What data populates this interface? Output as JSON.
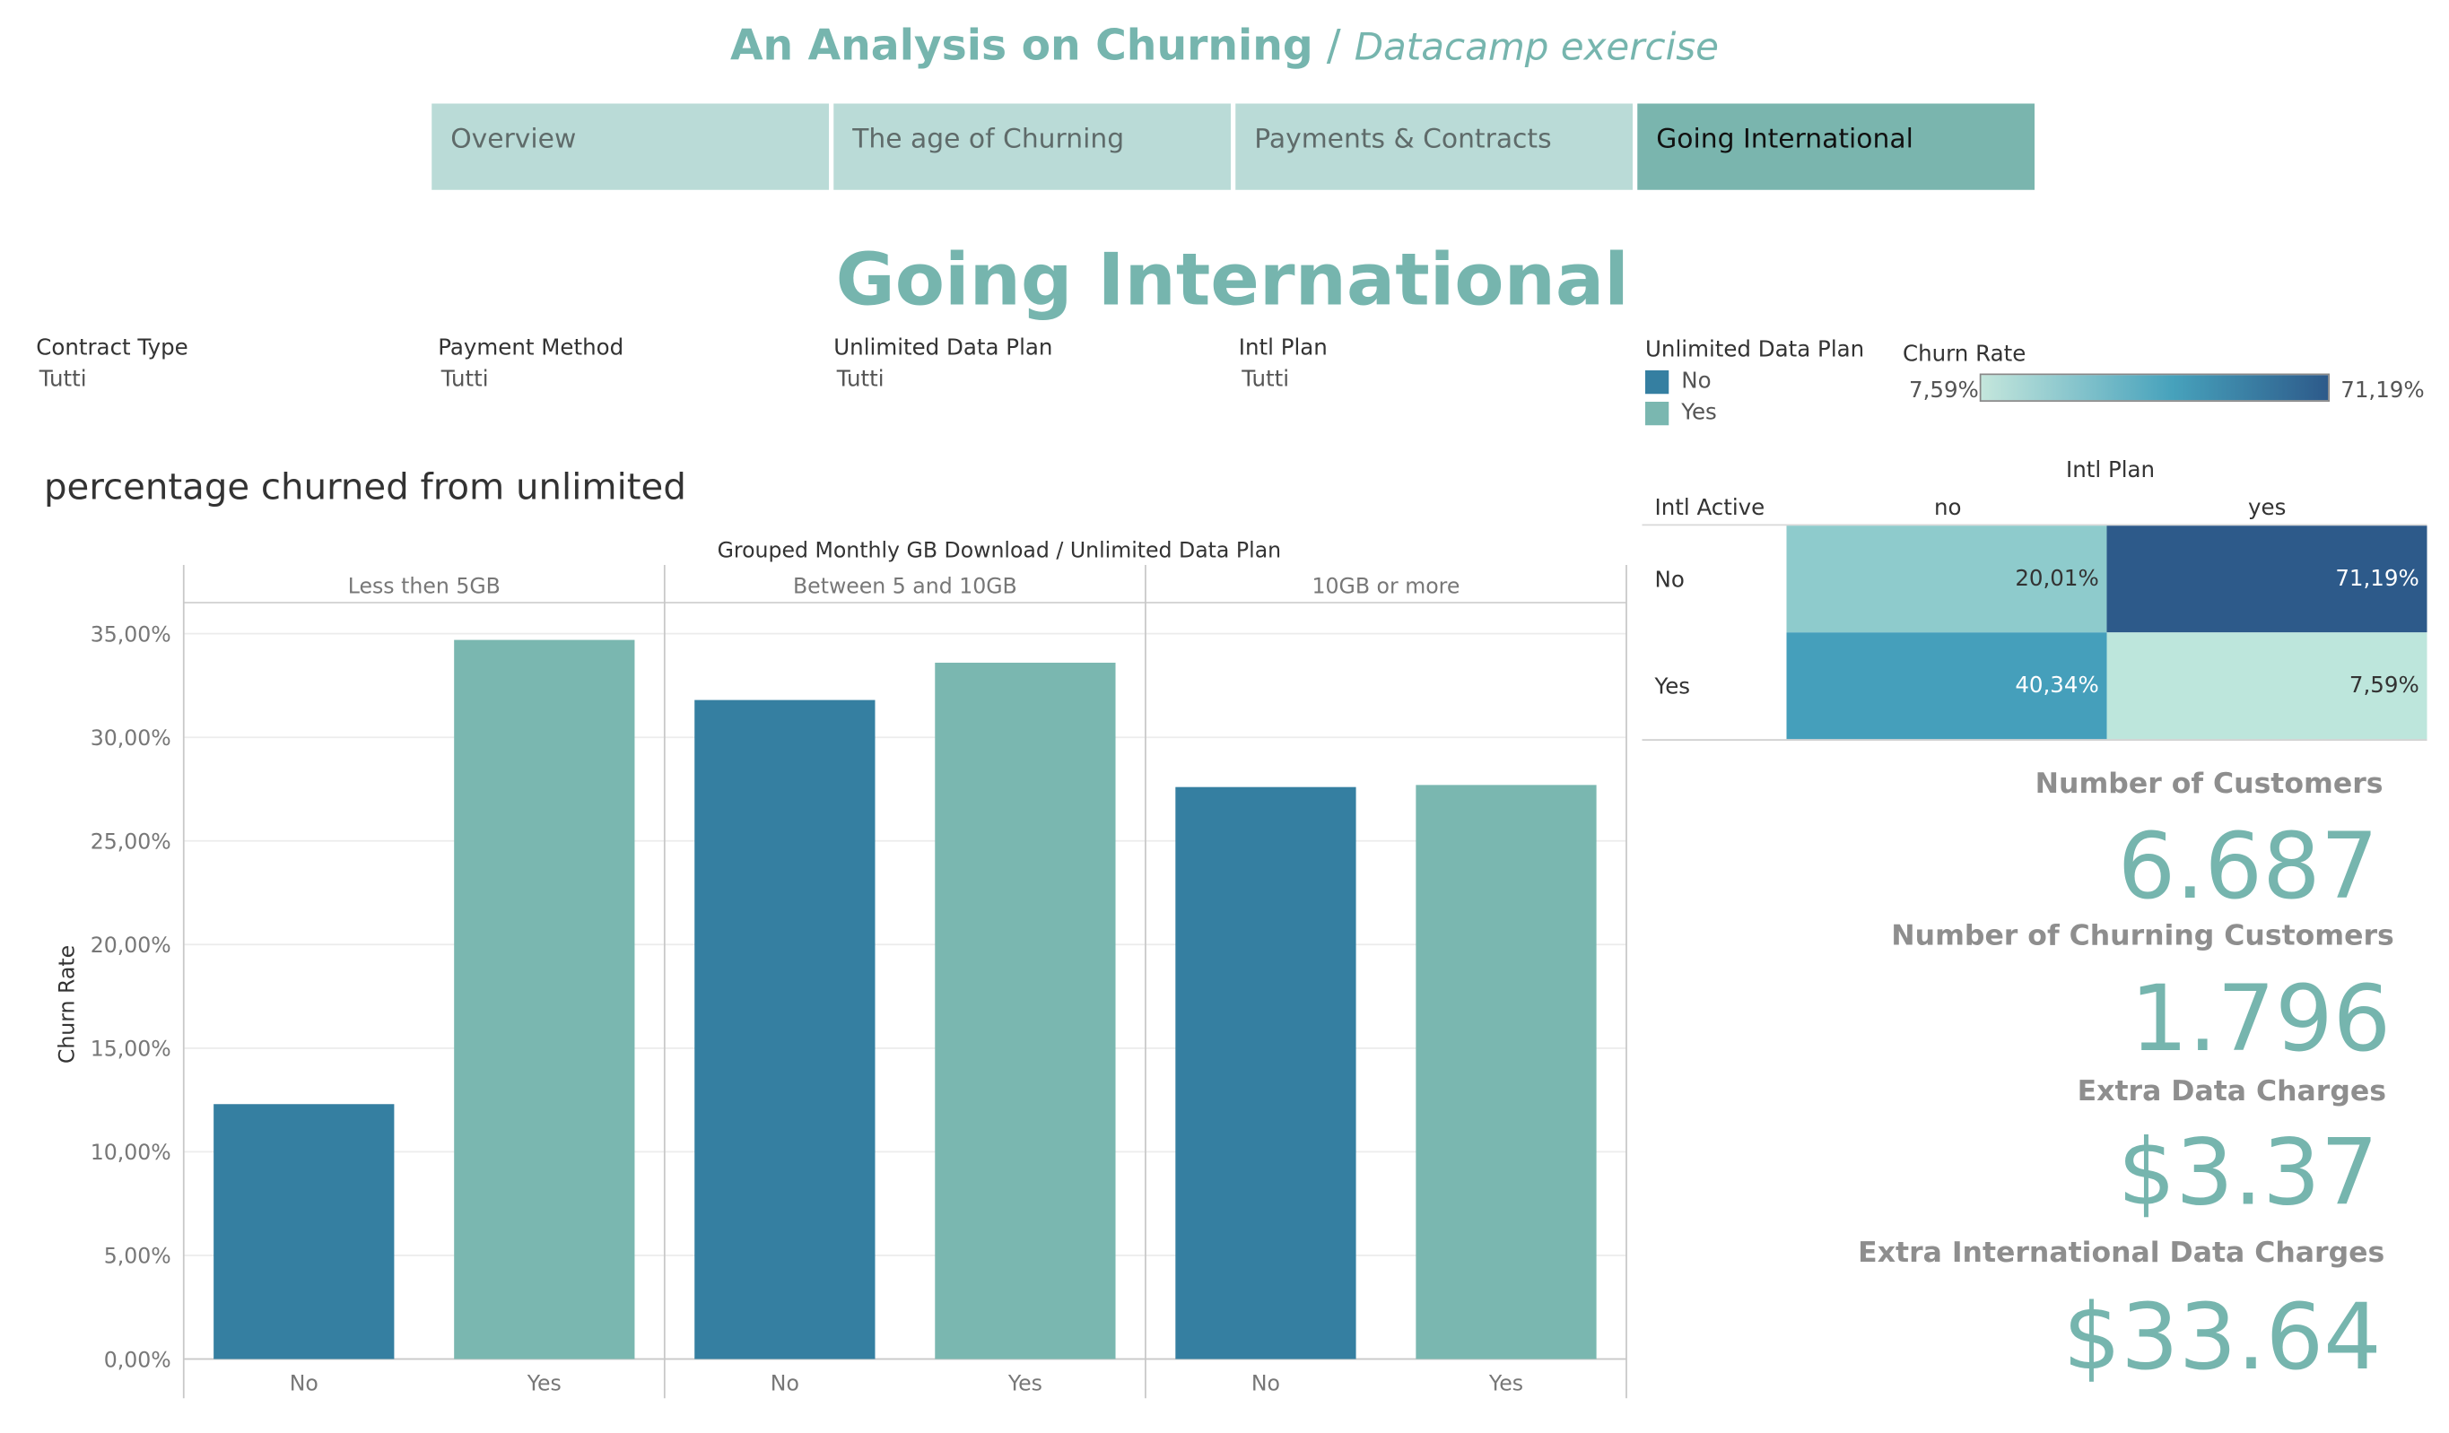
{
  "header": {
    "title": "An Analysis on Churning",
    "separator": "/",
    "subtitle": "Datacamp exercise"
  },
  "tabs": [
    {
      "label": "Overview",
      "active": false
    },
    {
      "label": "The age of Churning",
      "active": false
    },
    {
      "label": "Payments & Contracts",
      "active": false
    },
    {
      "label": "Going International",
      "active": true
    }
  ],
  "page_title": "Going International",
  "filters": [
    {
      "label": "Contract Type",
      "value": "Tutti"
    },
    {
      "label": "Payment Method",
      "value": "Tutti"
    },
    {
      "label": "Unlimited Data Plan",
      "value": "Tutti"
    },
    {
      "label": "Intl Plan",
      "value": "Tutti"
    }
  ],
  "legend": {
    "title": "Unlimited Data Plan",
    "items": [
      {
        "label": "No",
        "color": "#357fa1"
      },
      {
        "label": "Yes",
        "color": "#7ab7b0"
      }
    ]
  },
  "churn_scale": {
    "title": "Churn Rate",
    "min": "7,59%",
    "max": "71,19%"
  },
  "chart_data": [
    {
      "type": "bar",
      "title": "percentage churned from unlimited",
      "header": "Grouped Monthly GB Download  /  Unlimited Data Plan",
      "ylabel": "Churn Rate",
      "ylim": [
        0,
        36.5
      ],
      "yticks": [
        "0,00%",
        "5,00%",
        "10,00%",
        "15,00%",
        "20,00%",
        "25,00%",
        "30,00%",
        "35,00%"
      ],
      "grid": true,
      "panels": [
        "Less then 5GB",
        "Between 5 and 10GB",
        "10GB or more"
      ],
      "categories": [
        "No",
        "Yes"
      ],
      "colors": [
        "#357fa1",
        "#7ab7b0"
      ],
      "values": [
        [
          12.3,
          34.7
        ],
        [
          31.8,
          33.6
        ],
        [
          27.6,
          27.7
        ]
      ]
    },
    {
      "type": "heatmap",
      "title": "Intl Plan",
      "row_header": "Intl Active",
      "columns": [
        "no",
        "yes"
      ],
      "rows": [
        "No",
        "Yes"
      ],
      "values": [
        [
          "20,01%",
          "71,19%"
        ],
        [
          "40,34%",
          "7,59%"
        ]
      ],
      "colors": [
        [
          "#8ecbcc",
          "#2d5a8a"
        ],
        [
          "#459fbb",
          "#bde6dc"
        ]
      ],
      "text_colors": [
        [
          "#333333",
          "#ffffff"
        ],
        [
          "#ffffff",
          "#333333"
        ]
      ]
    }
  ],
  "kpis": [
    {
      "label": "Number of Customers",
      "value": "6.687"
    },
    {
      "label": "Number of Churning Customers",
      "value": "1.796"
    },
    {
      "label": "Extra Data Charges",
      "value": "$3.37"
    },
    {
      "label": "Extra International Data Charges",
      "value": "$33.64"
    }
  ]
}
